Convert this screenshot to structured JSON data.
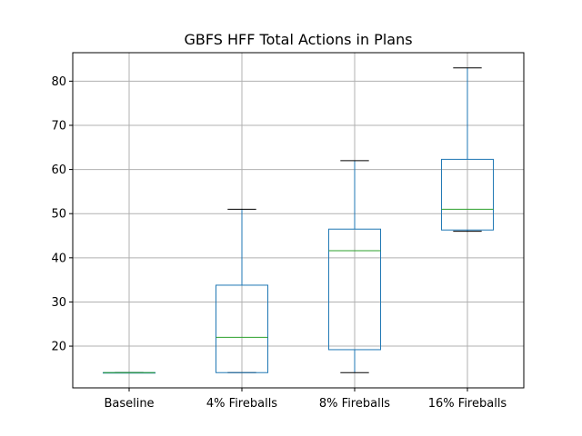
{
  "chart_data": {
    "type": "box",
    "title": "GBFS HFF Total Actions in Plans",
    "xlabel": "",
    "ylabel": "",
    "categories": [
      "Baseline",
      "4% Fireballs",
      "8% Fireballs",
      "16% Fireballs"
    ],
    "boxes": [
      {
        "name": "Baseline",
        "whisker_low": 14,
        "q1": 14,
        "median": 14,
        "q3": 14,
        "whisker_high": 14
      },
      {
        "name": "4% Fireballs",
        "whisker_low": 14,
        "q1": 14,
        "median": 22,
        "q3": 33.8,
        "whisker_high": 51
      },
      {
        "name": "8% Fireballs",
        "whisker_low": 14,
        "q1": 19.2,
        "median": 41.6,
        "q3": 46.5,
        "whisker_high": 62
      },
      {
        "name": "16% Fireballs",
        "whisker_low": 46,
        "q1": 46.3,
        "median": 51,
        "q3": 62.3,
        "whisker_high": 83
      }
    ],
    "yticks": [
      20,
      30,
      40,
      50,
      60,
      70,
      80
    ],
    "ylim": [
      10.55,
      86.45
    ],
    "grid": true,
    "colors": {
      "box": "#1f77b4",
      "median": "#2ca02c",
      "cap": "#000000",
      "grid": "#b0b0b0"
    }
  }
}
